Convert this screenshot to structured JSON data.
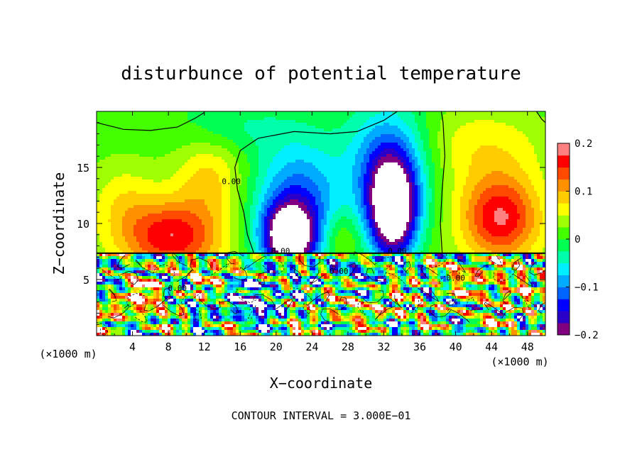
{
  "chart_data": {
    "type": "heatmap",
    "title": "disturbunce of potential temperature",
    "xlabel": "X−coordinate",
    "ylabel": "Z−coordinate",
    "x_unit": "(×1000 m)",
    "z_unit": "(×1000 m)",
    "footer": "CONTOUR INTERVAL = 3.000E−01",
    "xlim": [
      0,
      50
    ],
    "ylim": [
      0,
      20
    ],
    "xticks": [
      "4",
      "8",
      "12",
      "16",
      "20",
      "24",
      "28",
      "32",
      "36",
      "40",
      "44",
      "48"
    ],
    "xtick_values": [
      4,
      8,
      12,
      16,
      20,
      24,
      28,
      32,
      36,
      40,
      44,
      48
    ],
    "yticks": [
      "5",
      "10",
      "15"
    ],
    "ytick_values": [
      5,
      10,
      15
    ],
    "colorbar": {
      "range": [
        -0.2,
        0.2
      ],
      "ticks": [
        "0.2",
        "0.1",
        "0",
        "−0.1",
        "−0.2"
      ],
      "tick_values": [
        0.2,
        0.1,
        0,
        -0.1,
        -0.2
      ]
    },
    "contour_labels": [
      "0.00",
      "0.00",
      "0.00",
      "0.00",
      "0.00",
      "0.00"
    ],
    "contour_label_positions": [
      [
        20.5,
        7.3
      ],
      [
        33.5,
        7.3
      ],
      [
        9,
        4.0
      ],
      [
        40,
        4.9
      ],
      [
        15,
        13.5
      ],
      [
        27,
        5.5
      ]
    ],
    "features": [
      {
        "kind": "cold",
        "x": 21.5,
        "z": 8.8,
        "amp": -0.22
      },
      {
        "kind": "cold",
        "x": 33.0,
        "z": 12.0,
        "amp": -0.25
      },
      {
        "kind": "warm",
        "x": 8.5,
        "z": 9.0,
        "amp": 0.15
      },
      {
        "kind": "warm",
        "x": 45.0,
        "z": 10.5,
        "amp": 0.16
      }
    ]
  },
  "colors": {
    "colormap": [
      "#800080",
      "#2a00c8",
      "#0000ff",
      "#0064ff",
      "#00aaff",
      "#00f0ff",
      "#00ffaa",
      "#00ff50",
      "#44ff00",
      "#a0ff00",
      "#ffff00",
      "#ffcc00",
      "#ff9100",
      "#ff4a00",
      "#ff0000",
      "#ff8080"
    ]
  }
}
